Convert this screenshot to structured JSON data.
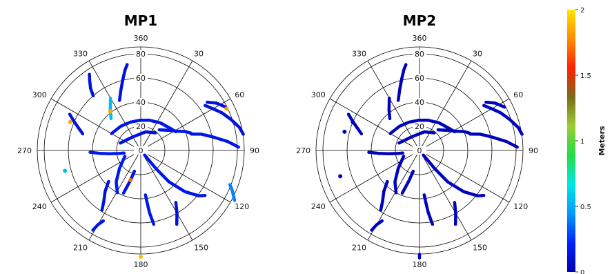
{
  "chart_data": [
    {
      "type": "scatter",
      "subtype": "polar",
      "title": "MP1",
      "rticks": [
        0,
        20,
        40,
        60,
        80
      ],
      "rlim": [
        0,
        90
      ],
      "azimuth_labels": [
        "360",
        "30",
        "60",
        "90",
        "120",
        "150",
        "180",
        "210",
        "240",
        "270",
        "300",
        "330"
      ],
      "colorbar_range": [
        0,
        2
      ],
      "tracks": [
        {
          "points": [
            [
              317,
              36
            ],
            [
              323,
              42
            ],
            [
              330,
              50
            ]
          ],
          "value": 0.55
        },
        {
          "points": [
            [
              319,
              60
            ],
            [
              321,
              66
            ],
            [
              324,
              72
            ],
            [
              326,
              76
            ]
          ],
          "value": 0.12
        },
        {
          "points": [
            [
              286,
              50
            ],
            [
              290,
              55
            ],
            [
              294,
              61
            ],
            [
              297,
              66
            ]
          ],
          "value": 0.12
        },
        {
          "points": [
            [
              337,
              45
            ],
            [
              342,
              53
            ],
            [
              346,
              61
            ],
            [
              349,
              68
            ],
            [
              351,
              72
            ]
          ],
          "value": 0.12
        },
        {
          "points": [
            [
              268,
              42
            ],
            [
              266,
              34
            ],
            [
              264,
              26
            ],
            [
              262,
              18
            ],
            [
              261,
              14
            ]
          ],
          "value": 0.18
        },
        {
          "points": [
            [
              250,
              14
            ],
            [
              230,
              23
            ],
            [
              218,
              33
            ],
            [
              209,
              40
            ]
          ],
          "value": 0.18
        },
        {
          "points": [
            [
              226,
              37
            ],
            [
              221,
              45
            ],
            [
              216,
              52
            ],
            [
              213,
              59
            ]
          ],
          "value": 0.12
        },
        {
          "points": [
            [
              300,
              28
            ],
            [
              320,
              26
            ],
            [
              340,
              25
            ],
            [
              358,
              25
            ],
            [
              15,
              26
            ],
            [
              35,
              28
            ],
            [
              55,
              31
            ],
            [
              62,
              33
            ]
          ],
          "value": 0.15
        },
        {
          "points": [
            [
              290,
              18
            ],
            [
              330,
              13
            ],
            [
              15,
              16
            ],
            [
              40,
              19
            ]
          ],
          "value": 0.12
        },
        {
          "points": [
            [
              42,
              23
            ],
            [
              55,
              29
            ],
            [
              62,
              34
            ],
            [
              67,
              40
            ],
            [
              71,
              44
            ]
          ],
          "value": 0.15
        },
        {
          "points": [
            [
              72,
              44
            ],
            [
              75,
              52
            ],
            [
              79,
              60
            ],
            [
              84,
              72
            ],
            [
              88,
              81
            ]
          ],
          "value": 0.15
        },
        {
          "points": [
            [
              55,
              65
            ],
            [
              60,
              69
            ],
            [
              65,
              74
            ],
            [
              71,
              79
            ],
            [
              77,
              84
            ],
            [
              81,
              86
            ]
          ],
          "value": 0.12
        },
        {
          "points": [
            [
              54,
              68
            ],
            [
              58,
              74
            ],
            [
              63,
              79
            ]
          ],
          "value": 0.12
        },
        {
          "points": [
            [
              140,
              5
            ],
            [
              140,
              20
            ],
            [
              138,
              35
            ],
            [
              133,
              50
            ],
            [
              128,
              61
            ],
            [
              125,
              65
            ]
          ],
          "value": 0.15
        },
        {
          "points": [
            [
              146,
              52
            ],
            [
              150,
              60
            ],
            [
              154,
              68
            ]
          ],
          "value": 0.12
        },
        {
          "points": [
            [
              174,
              37
            ],
            [
              173,
              44
            ],
            [
              172,
              52
            ],
            [
              170,
              62
            ]
          ],
          "value": 0.15
        },
        {
          "points": [
            [
              197,
              18
            ],
            [
              199,
              26
            ],
            [
              201,
              33
            ],
            [
              202,
              38
            ]
          ],
          "value": 0.15
        },
        {
          "points": [
            [
              111,
              79
            ],
            [
              113,
              82
            ],
            [
              118,
              88
            ]
          ],
          "value": 0.4
        },
        {
          "points": [
            [
              208,
              66
            ],
            [
              210,
              71
            ],
            [
              211,
              77
            ]
          ],
          "value": 0.15
        },
        {
          "points": [
            [
              180,
              88
            ]
          ],
          "value": 1.9
        },
        {
          "points": [
            [
              255,
              65
            ]
          ],
          "value": 0.55
        },
        {
          "points": [
            [
              64,
              79
            ]
          ],
          "value": 1.8
        },
        {
          "points": [
            [
              292,
              63
            ]
          ],
          "value": 1.85
        },
        {
          "points": [
            [
              199,
              26
            ]
          ],
          "value": 1.7
        },
        {
          "points": [
            [
              322,
              41
            ]
          ],
          "value": 1.85
        }
      ]
    },
    {
      "type": "scatter",
      "subtype": "polar",
      "title": "MP2",
      "rticks": [
        0,
        20,
        40,
        60,
        80
      ],
      "rlim": [
        0,
        90
      ],
      "azimuth_labels": [
        "360",
        "30",
        "60",
        "90",
        "120",
        "150",
        "180",
        "210",
        "240",
        "270",
        "300",
        "330"
      ],
      "colorbar_range": [
        0,
        2
      ],
      "tracks": [
        {
          "points": [
            [
              317,
              36
            ],
            [
              323,
              42
            ],
            [
              330,
              50
            ]
          ],
          "value": 0.02
        },
        {
          "points": [
            [
              286,
              50
            ],
            [
              290,
              55
            ],
            [
              294,
              61
            ],
            [
              297,
              66
            ]
          ],
          "value": 0.02
        },
        {
          "points": [
            [
              337,
              45
            ],
            [
              342,
              53
            ],
            [
              346,
              61
            ],
            [
              349,
              68
            ],
            [
              351,
              72
            ]
          ],
          "value": 0.02
        },
        {
          "points": [
            [
              268,
              42
            ],
            [
              266,
              34
            ],
            [
              264,
              26
            ],
            [
              262,
              18
            ],
            [
              261,
              14
            ]
          ],
          "value": 0.02
        },
        {
          "points": [
            [
              250,
              14
            ],
            [
              230,
              23
            ],
            [
              218,
              33
            ],
            [
              209,
              40
            ]
          ],
          "value": 0.02
        },
        {
          "points": [
            [
              226,
              37
            ],
            [
              221,
              45
            ],
            [
              216,
              52
            ],
            [
              213,
              59
            ]
          ],
          "value": 0.02
        },
        {
          "points": [
            [
              300,
              28
            ],
            [
              320,
              26
            ],
            [
              340,
              25
            ],
            [
              358,
              25
            ],
            [
              15,
              26
            ],
            [
              35,
              28
            ],
            [
              55,
              31
            ],
            [
              62,
              33
            ]
          ],
          "value": 0.02
        },
        {
          "points": [
            [
              290,
              18
            ],
            [
              330,
              13
            ],
            [
              15,
              16
            ],
            [
              40,
              19
            ]
          ],
          "value": 0.02
        },
        {
          "points": [
            [
              42,
              23
            ],
            [
              55,
              29
            ],
            [
              62,
              34
            ],
            [
              67,
              40
            ],
            [
              71,
              44
            ]
          ],
          "value": 0.02
        },
        {
          "points": [
            [
              72,
              44
            ],
            [
              75,
              52
            ],
            [
              79,
              60
            ],
            [
              84,
              72
            ],
            [
              88,
              81
            ]
          ],
          "value": 0.02
        },
        {
          "points": [
            [
              55,
              65
            ],
            [
              60,
              69
            ],
            [
              65,
              74
            ],
            [
              71,
              79
            ],
            [
              77,
              84
            ],
            [
              81,
              86
            ]
          ],
          "value": 0.02
        },
        {
          "points": [
            [
              54,
              68
            ],
            [
              58,
              74
            ],
            [
              63,
              79
            ]
          ],
          "value": 0.02
        },
        {
          "points": [
            [
              140,
              5
            ],
            [
              140,
              20
            ],
            [
              138,
              35
            ],
            [
              133,
              50
            ],
            [
              128,
              61
            ],
            [
              125,
              65
            ]
          ],
          "value": 0.02
        },
        {
          "points": [
            [
              146,
              52
            ],
            [
              150,
              60
            ],
            [
              154,
              68
            ]
          ],
          "value": 0.02
        },
        {
          "points": [
            [
              174,
              37
            ],
            [
              173,
              44
            ],
            [
              172,
              52
            ],
            [
              170,
              62
            ]
          ],
          "value": 0.02
        },
        {
          "points": [
            [
              197,
              18
            ],
            [
              199,
              26
            ],
            [
              201,
              33
            ],
            [
              202,
              38
            ]
          ],
          "value": 0.02
        },
        {
          "points": [
            [
              208,
              66
            ],
            [
              210,
              71
            ],
            [
              211,
              77
            ]
          ],
          "value": 0.02
        },
        {
          "points": [
            [
              180,
              86
            ],
            [
              180,
              89
            ]
          ],
          "value": 0.02
        },
        {
          "points": [
            [
              252,
              69
            ]
          ],
          "value": 0.02
        },
        {
          "points": [
            [
              284,
              64
            ]
          ],
          "value": 0.02
        },
        {
          "points": [
            [
              293,
              60
            ]
          ],
          "value": 0.02
        }
      ]
    }
  ],
  "colorbar": {
    "label": "Meters",
    "ticks": [
      "0",
      "0.5",
      "1",
      "1.5",
      "2"
    ],
    "tick_values": [
      0,
      0.5,
      1,
      1.5,
      2
    ],
    "range": [
      0,
      2
    ],
    "colors": [
      "#0000b4",
      "#0022ff",
      "#0099ff",
      "#00e6e6",
      "#22dd44",
      "#9acd32",
      "#7a6b1a",
      "#ff2200",
      "#ff8c00",
      "#ffe600"
    ]
  }
}
